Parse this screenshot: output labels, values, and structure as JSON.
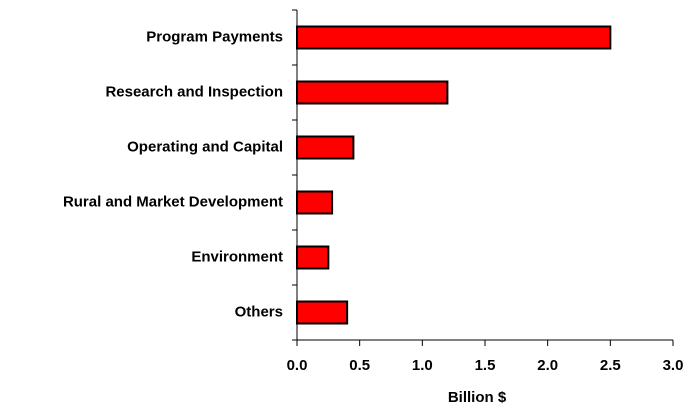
{
  "chart_data": {
    "type": "bar",
    "orientation": "horizontal",
    "x_label": "Billion $",
    "categories": [
      "Program Payments",
      "Research and Inspection",
      "Operating and Capital",
      "Rural and Market Development",
      "Environment",
      "Others"
    ],
    "values": [
      2.5,
      1.2,
      0.45,
      0.28,
      0.25,
      0.4
    ],
    "color": "#ff0000",
    "xlim": [
      0,
      3
    ],
    "xticks": [
      {
        "value": 0,
        "label": "0.0"
      },
      0.5,
      {
        "value": 1,
        "label": "1.0"
      },
      1.5,
      {
        "value": 2,
        "label": "2.0"
      },
      2.5,
      {
        "value": 3,
        "label": "3.0"
      }
    ],
    "grid": false
  }
}
